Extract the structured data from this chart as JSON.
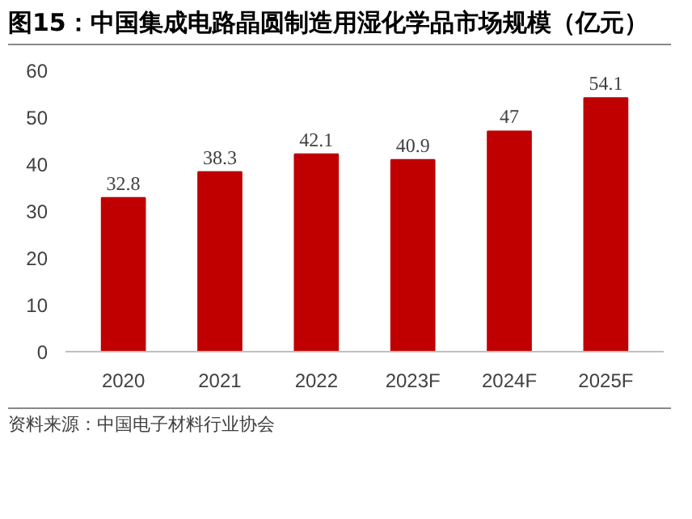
{
  "chart_data": {
    "type": "bar",
    "title": "图15：中国集成电路晶圆制造用湿化学品市场规模（亿元）",
    "categories": [
      "2020",
      "2021",
      "2022",
      "2023F",
      "2024F",
      "2025F"
    ],
    "values": [
      32.8,
      38.3,
      42.1,
      40.9,
      47,
      54.1
    ],
    "color": "#c00000",
    "ylim": [
      0,
      60
    ],
    "yticks": [
      0,
      10,
      20,
      30,
      40,
      50,
      60
    ],
    "grid": false,
    "data_labels": true,
    "annotations": [
      "资料来源：中国电子材料行业协会"
    ]
  }
}
